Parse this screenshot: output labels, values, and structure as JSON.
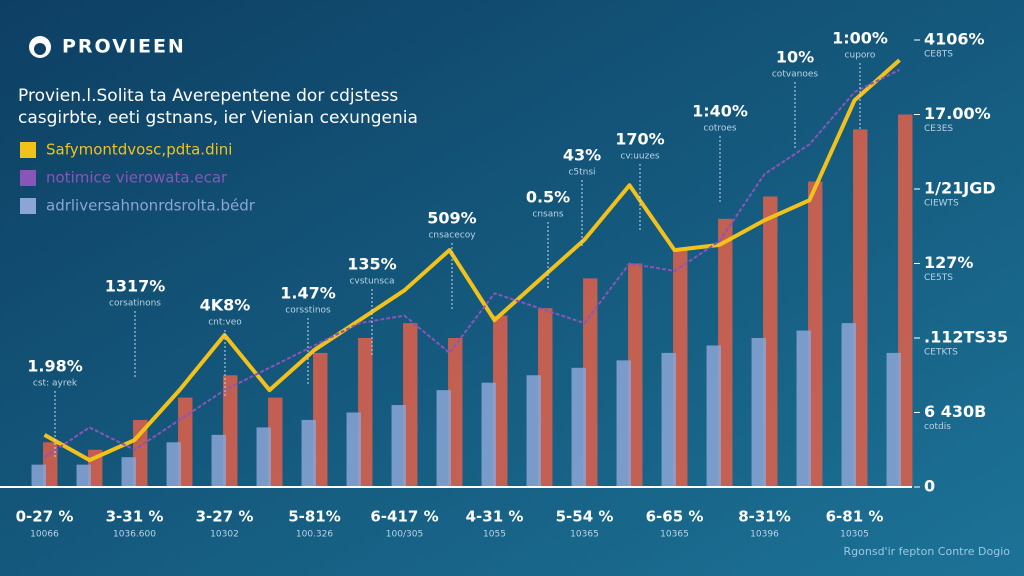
{
  "chart_data": {
    "type": "bar",
    "title": "PROVIEEN",
    "subtitle": [
      "Provien.l.Solita ta Averepentene dor cdjstess",
      "casgirbte, eeti gstnans, ier Vienian cexungenia"
    ],
    "footer": "Rgonsd'ir fepton Contre Dogio",
    "categories": [
      "0-27 %",
      null,
      "3-31 %",
      null,
      "3-27 %",
      null,
      "5-81%",
      null,
      "6-417 %",
      null,
      "4-31 %",
      null,
      "5-54 %",
      null,
      "6-65 %",
      null,
      "8-31%",
      null,
      "6-81 %",
      null
    ],
    "x_sublabels": [
      "10066",
      null,
      "1036.600",
      null,
      "10302",
      null,
      "100.326",
      null,
      "100/305",
      null,
      "1055",
      null,
      "10365",
      null,
      "10365",
      null,
      "10396",
      null,
      "10305",
      null
    ],
    "ylim": [
      0,
      6
    ],
    "yticks": [
      {
        "value": 0,
        "label": "0"
      },
      {
        "value": 1,
        "label": "6 430B"
      },
      {
        "value": 2,
        "label": ".112TS35"
      },
      {
        "value": 3,
        "label": "127%"
      },
      {
        "value": 4,
        "label": "1/21JGD"
      },
      {
        "value": 5,
        "label": "17.00%"
      },
      {
        "value": 6,
        "label": "4106%"
      }
    ],
    "y_sublabels": [
      null,
      "cotdis",
      "CETKTS",
      "CE5TS",
      "CIEWTS",
      "CE3ES",
      "CE8TS"
    ],
    "series": [
      {
        "name": "Safymontdvosc,pdta.dini",
        "color": "#f2c21b",
        "kind": "line",
        "values": [
          0.7,
          0.36,
          0.63,
          1.3,
          2.04,
          1.3,
          1.84,
          2.24,
          2.64,
          3.18,
          2.24,
          2.78,
          3.32,
          4.05,
          3.18,
          3.25,
          3.58,
          3.85,
          5.19,
          5.73
        ]
      },
      {
        "name": "notimice vierowata.ecar",
        "color": "#8a55b8",
        "kind": "line",
        "values": [
          0.4,
          0.8,
          0.5,
          0.9,
          1.3,
          1.6,
          1.9,
          2.2,
          2.3,
          1.8,
          2.6,
          2.4,
          2.2,
          3.0,
          2.9,
          3.3,
          4.2,
          4.6,
          5.3,
          5.6
        ]
      },
      {
        "name": "adrliversahnonrdsrolta.bédr",
        "color": "#8ba6d6",
        "kind": "bar",
        "values": [
          0.3,
          0.3,
          0.4,
          0.6,
          0.7,
          0.8,
          0.9,
          1.0,
          1.1,
          1.3,
          1.4,
          1.5,
          1.6,
          1.7,
          1.8,
          1.9,
          2.0,
          2.1,
          2.2,
          1.8
        ]
      },
      {
        "color": "#e0604a",
        "kind": "bar",
        "values": [
          0.6,
          0.5,
          0.9,
          1.2,
          1.5,
          1.2,
          1.8,
          2.0,
          2.2,
          2.0,
          2.3,
          2.4,
          2.8,
          3.0,
          3.2,
          3.6,
          3.9,
          4.1,
          4.8,
          5.0
        ]
      }
    ],
    "annotations": [
      {
        "text": "1.98%",
        "note": "cst: ayrek"
      },
      {
        "text": "1317%",
        "note": "corsatinons"
      },
      {
        "text": "4K8%",
        "note": "cnt:veo"
      },
      {
        "text": "1.47%",
        "note": "corsstinos"
      },
      {
        "text": "135%",
        "note": "cvstunsca"
      },
      {
        "text": "509%",
        "note": "cnsacecoy"
      },
      {
        "text": "0.5%",
        "note": "cnsans"
      },
      {
        "text": "43%",
        "note": "c5tnsi"
      },
      {
        "text": "170%",
        "note": "cv:uuzes"
      },
      {
        "text": "1:40%",
        "note": "cotroes"
      },
      {
        "text": "10%",
        "note": "cotvanoes"
      },
      {
        "text": "1:00%",
        "note": "cuporo"
      }
    ],
    "legend": "upper left"
  }
}
